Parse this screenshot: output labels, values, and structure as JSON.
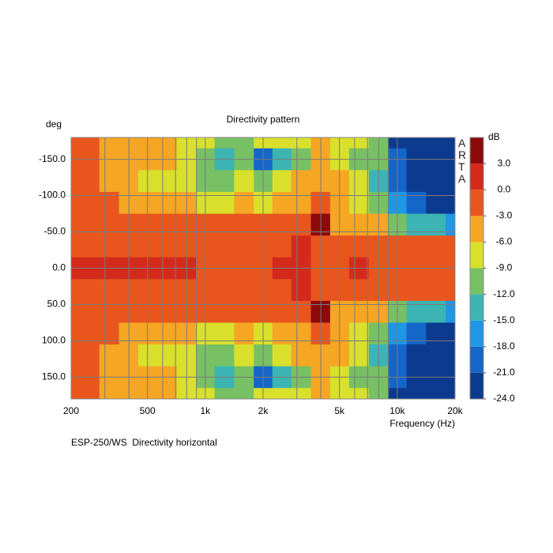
{
  "chart_data": {
    "type": "contour",
    "title": "Directivity pattern",
    "y_label": "deg",
    "x_label": "Frequency (Hz)",
    "footnote": "ESP-250/WS  Directivity horizontal",
    "watermark": "ARTA",
    "x_scale": "log",
    "xlim": [
      200,
      20000
    ],
    "ylim": [
      -180,
      180
    ],
    "xticks": [
      {
        "value": 200,
        "label": "200"
      },
      {
        "value": 500,
        "label": "500"
      },
      {
        "value": 1000,
        "label": "1k"
      },
      {
        "value": 2000,
        "label": "2k"
      },
      {
        "value": 5000,
        "label": "5k"
      },
      {
        "value": 10000,
        "label": "10k"
      },
      {
        "value": 20000,
        "label": "20k"
      }
    ],
    "xminor": [
      300,
      400,
      600,
      700,
      800,
      900,
      3000,
      4000,
      6000,
      7000,
      8000,
      9000
    ],
    "yticks": [
      {
        "value": -150,
        "label": "-150.0"
      },
      {
        "value": -100,
        "label": "-100.0"
      },
      {
        "value": -50,
        "label": "-50.0"
      },
      {
        "value": 0,
        "label": "0.0"
      },
      {
        "value": 50,
        "label": "50.0"
      },
      {
        "value": 100,
        "label": "100.0"
      },
      {
        "value": 150,
        "label": "150.0"
      }
    ],
    "colorbar_label": "dB",
    "zlim": [
      -24,
      6
    ],
    "zticks": [
      {
        "value": 3,
        "label": "3.0"
      },
      {
        "value": 0,
        "label": "0.0"
      },
      {
        "value": -3,
        "label": "-3.0"
      },
      {
        "value": -6,
        "label": "-6.0"
      },
      {
        "value": -9,
        "label": "-9.0"
      },
      {
        "value": -12,
        "label": "-12.0"
      },
      {
        "value": -15,
        "label": "-15.0"
      },
      {
        "value": -18,
        "label": "-18.0"
      },
      {
        "value": -21,
        "label": "-21.0"
      },
      {
        "value": -24,
        "label": "-24.0"
      }
    ],
    "colors": [
      "#0c3a8e",
      "#1466c8",
      "#1f96e6",
      "#3cb4b4",
      "#78c064",
      "#d8e02c",
      "#f5a623",
      "#e8561e",
      "#d42a1c",
      "#8c0a0a"
    ],
    "x": [
      200,
      250,
      315,
      400,
      500,
      630,
      800,
      1000,
      1250,
      1600,
      2000,
      2500,
      3150,
      4000,
      5000,
      6300,
      8000,
      10000,
      12500,
      16000,
      20000
    ],
    "y": [
      -180,
      -150,
      -120,
      -90,
      -60,
      -30,
      0,
      30,
      60,
      90,
      120,
      150,
      180
    ],
    "z": [
      [
        -1.5,
        -2,
        -4,
        -5,
        -5,
        -6,
        -7,
        -8,
        -10,
        -10,
        -9,
        -9,
        -7,
        -5,
        -7,
        -9,
        -11,
        -22,
        -22,
        -22,
        -22
      ],
      [
        -1.5,
        -2,
        -4,
        -4.5,
        -5,
        -6,
        -8,
        -11,
        -13,
        -12,
        -19,
        -13,
        -10,
        -5,
        -8,
        -11,
        -12,
        -21,
        -22,
        -22,
        -22
      ],
      [
        -1.5,
        -2,
        -3.5,
        -4,
        -6.5,
        -7,
        -7,
        -9.5,
        -10,
        -8,
        -10,
        -9,
        -6,
        -4,
        -6,
        -9,
        -13,
        -19,
        -22,
        -22,
        -22
      ],
      [
        -1.5,
        -1.5,
        -2,
        -3.5,
        -4,
        -5,
        -5,
        -7,
        -7,
        -6,
        -7,
        -6,
        -4,
        -1,
        -4,
        -7,
        -12,
        -17,
        -20,
        -22,
        -22
      ],
      [
        -1,
        -1,
        -1,
        -1.5,
        -1.5,
        -2,
        -2,
        -2.5,
        -2.5,
        -2,
        -2,
        -2,
        -1,
        4,
        -4,
        -4,
        -5,
        -10,
        -13,
        -15,
        -16
      ],
      [
        -1,
        -1,
        -1,
        -1,
        -1,
        -1,
        -1,
        -1.5,
        -1.5,
        -1.5,
        -1.5,
        -1,
        0.5,
        -1,
        -1,
        -1,
        -2,
        -2.5,
        -2.5,
        -2.5,
        -2.5
      ],
      [
        1,
        1,
        1,
        1,
        1,
        1,
        1,
        -1,
        -1,
        -1,
        -1,
        0.5,
        0.5,
        -1,
        -1,
        0.5,
        -1,
        -2,
        -2,
        -2,
        -2
      ],
      [
        -1,
        -1,
        -1,
        -1,
        -1,
        -1,
        -1,
        -1.5,
        -1.5,
        -1.5,
        -1.5,
        -1,
        0.5,
        -1,
        -1,
        -1,
        -2,
        -2.5,
        -2.5,
        -2.5,
        -2.5
      ],
      [
        -1,
        -1,
        -1,
        -1.5,
        -1.5,
        -2,
        -2,
        -2.5,
        -2.5,
        -2,
        -2,
        -2,
        -1,
        4,
        -4,
        -4,
        -5,
        -10,
        -13,
        -15,
        -16
      ],
      [
        -1.5,
        -1.5,
        -2,
        -3.5,
        -4,
        -5,
        -5,
        -7,
        -7,
        -6,
        -7,
        -6,
        -4,
        -1,
        -4,
        -7,
        -12,
        -17,
        -20,
        -22,
        -22
      ],
      [
        -1.5,
        -2,
        -3.5,
        -4,
        -6.5,
        -7,
        -7,
        -9.5,
        -10,
        -8,
        -10,
        -9,
        -6,
        -4,
        -6,
        -9,
        -13,
        -19,
        -22,
        -22,
        -22
      ],
      [
        -1.5,
        -2,
        -4,
        -4.5,
        -5,
        -6,
        -8,
        -11,
        -13,
        -12,
        -19,
        -13,
        -10,
        -5,
        -8,
        -11,
        -12,
        -21,
        -22,
        -22,
        -22
      ],
      [
        -1.5,
        -2,
        -4,
        -5,
        -5,
        -6,
        -7,
        -8,
        -10,
        -10,
        -9,
        -9,
        -7,
        -5,
        -7,
        -9,
        -11,
        -22,
        -22,
        -22,
        -22
      ]
    ]
  }
}
